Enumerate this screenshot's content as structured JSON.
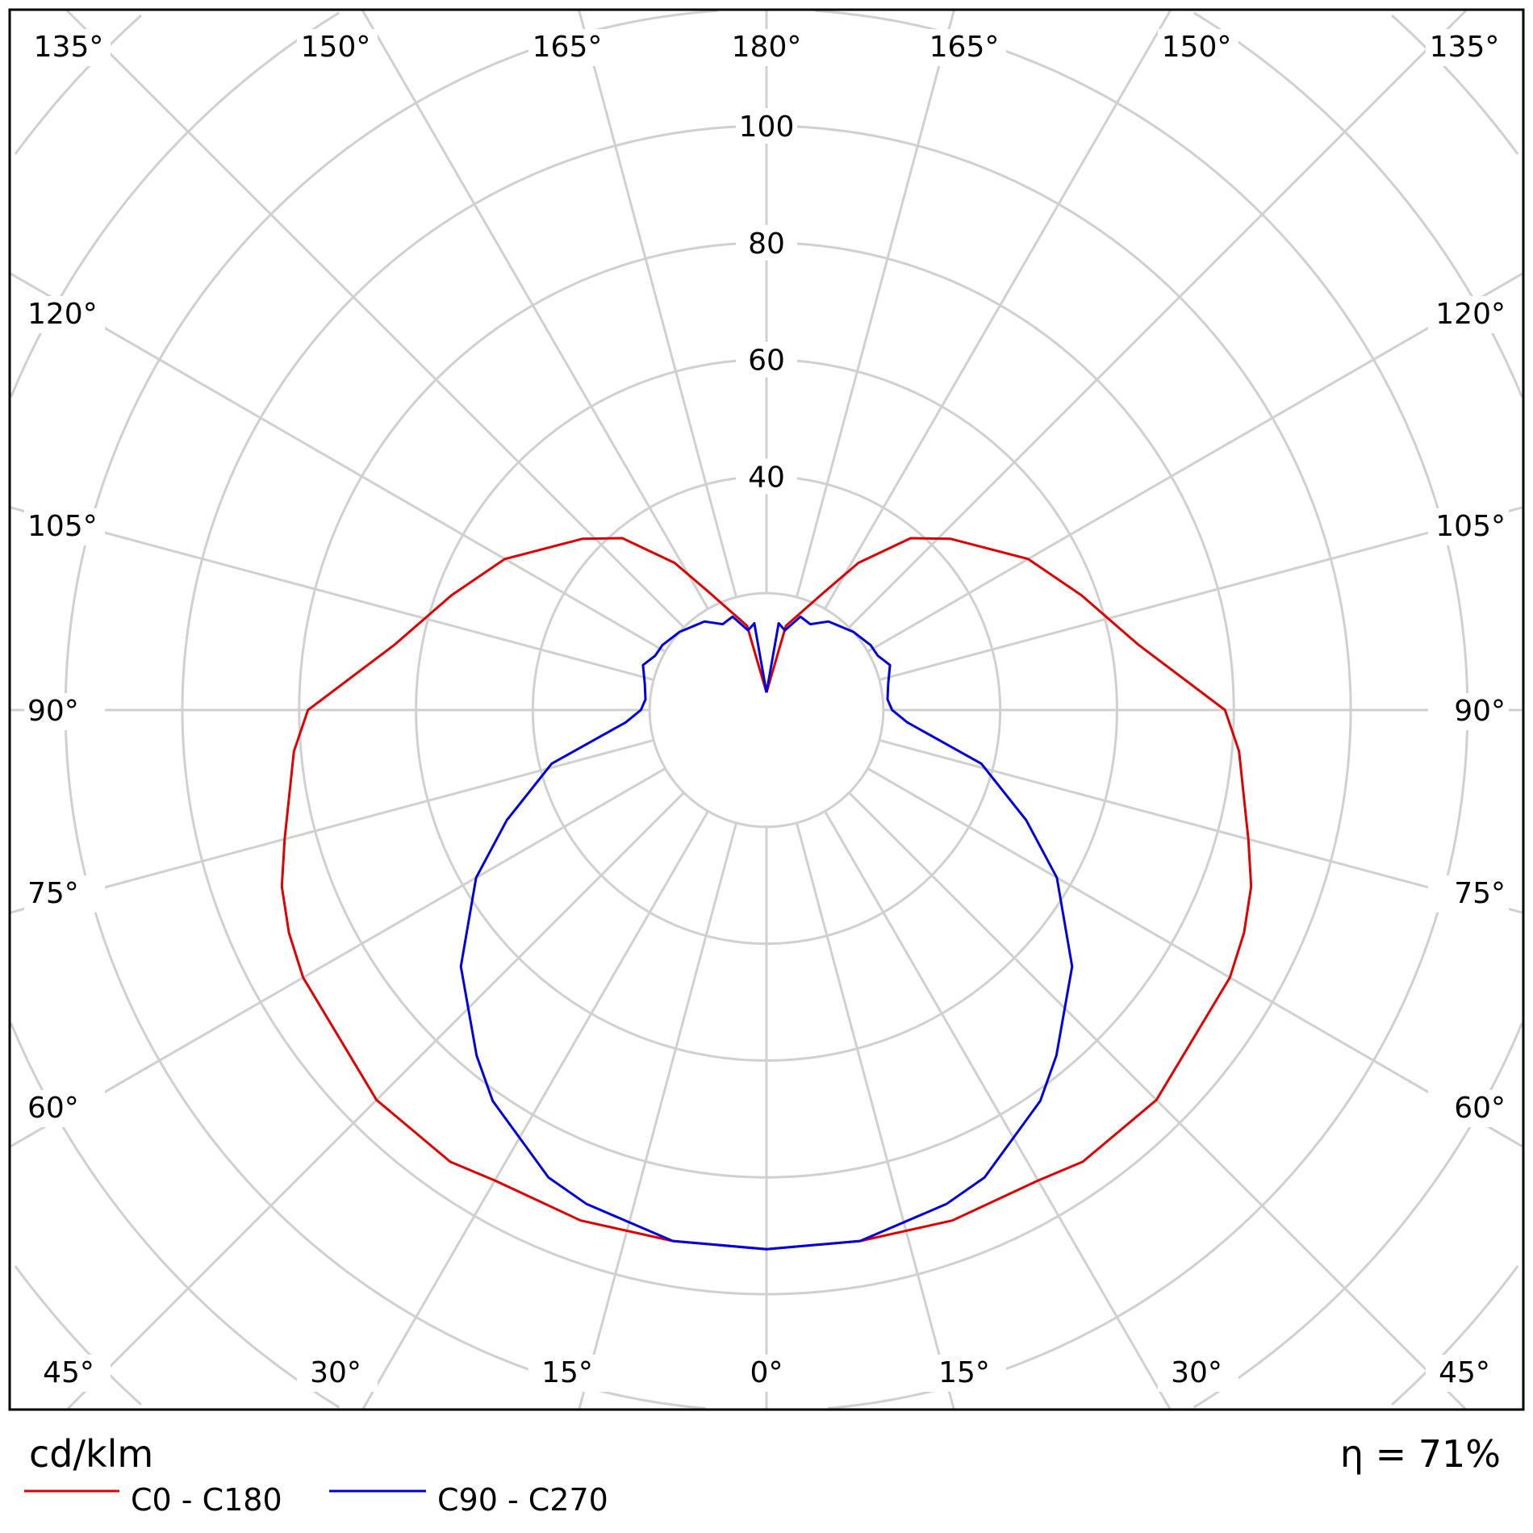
{
  "chart_data": {
    "type": "polar-line",
    "unit_label": "cd/klm",
    "efficiency_label": "η = 71%",
    "radial_ticks": [
      40,
      60,
      80,
      100
    ],
    "radial_tick_labels": [
      "40",
      "60",
      "80",
      "100"
    ],
    "radial_grid_step": 20,
    "angle_step_deg": 15,
    "angle_labels": {
      "top": [
        "135°",
        "150°",
        "165°",
        "180°",
        "165°",
        "150°",
        "135°"
      ],
      "left": [
        "120°",
        "105°",
        "90°",
        "75°",
        "60°"
      ],
      "right": [
        "120°",
        "105°",
        "90°",
        "75°",
        "60°"
      ],
      "bottom": [
        "45°",
        "30°",
        "15°",
        "0°",
        "15°",
        "30°",
        "45°"
      ]
    },
    "grid": true,
    "legend_placement": "bottom-left",
    "series": [
      {
        "name": "C0 - C180",
        "color": "#dd0000",
        "angles": [
          0,
          10,
          20,
          30,
          35,
          45,
          60,
          65,
          70,
          75,
          85,
          90,
          100,
          110,
          120,
          133,
          140,
          148,
          154,
          167,
          180
        ],
        "values": [
          92.3,
          92.3,
          93,
          93,
          94.4,
          94.4,
          91.6,
          90.2,
          88.3,
          85.4,
          81.2,
          78.5,
          64.6,
          57.4,
          51.7,
          43,
          38.4,
          29.7,
          22.4,
          14.8,
          3
        ]
      },
      {
        "name": "C90 - C270",
        "color": "#0000dd",
        "angles": [
          0,
          10,
          20,
          25,
          35,
          40,
          50,
          60,
          67,
          76,
          85,
          90,
          95,
          102,
          110,
          116,
          122,
          132,
          145,
          153,
          160,
          167,
          172,
          180
        ],
        "values": [
          92.3,
          92.3,
          90,
          88.3,
          81.7,
          77.2,
          68.3,
          57.4,
          48.3,
          37.9,
          24.2,
          21.5,
          20.8,
          21.3,
          22.5,
          21.2,
          21,
          20,
          18.5,
          16.5,
          17,
          14,
          15,
          3
        ]
      }
    ]
  }
}
